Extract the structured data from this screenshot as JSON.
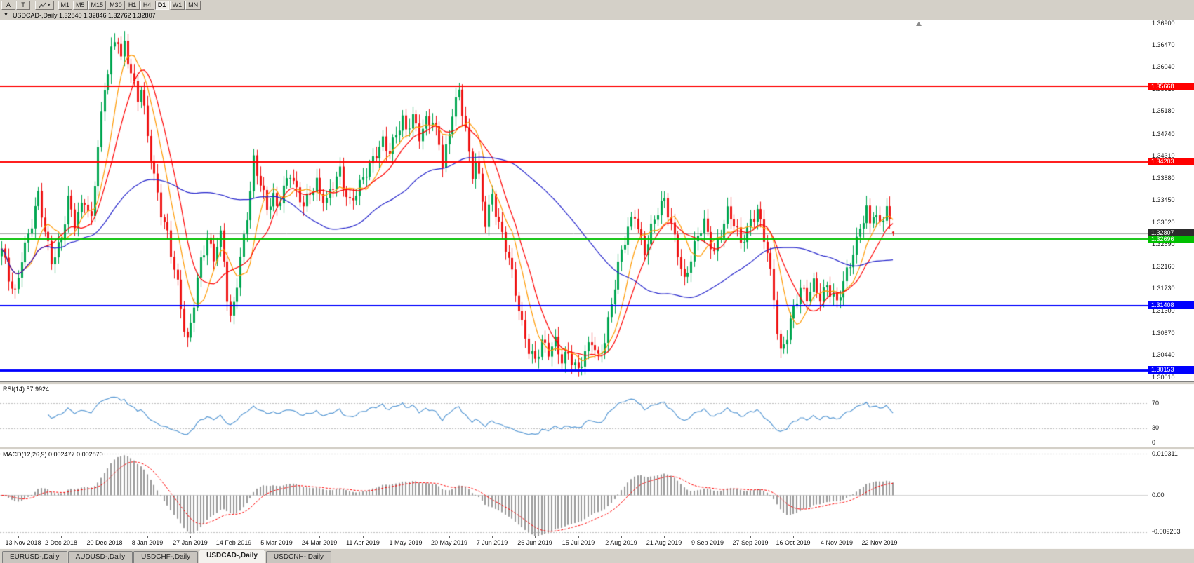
{
  "toolbar": {
    "left_buttons": [
      "A",
      "T"
    ],
    "timeframes": [
      "M1",
      "M5",
      "M15",
      "M30",
      "H1",
      "H4",
      "D1",
      "W1",
      "MN"
    ],
    "active_timeframe": "D1"
  },
  "title_bar": {
    "text": "USDCAD-,Daily  1.32840 1.32846 1.32762 1.32807"
  },
  "quote": {
    "open": 1.3284,
    "high": 1.32846,
    "low": 1.32762,
    "close": 1.32807
  },
  "price_scale": {
    "ticks": [
      "1.36900",
      "1.36470",
      "1.36040",
      "1.35610",
      "1.35180",
      "1.34740",
      "1.34310",
      "1.33880",
      "1.33450",
      "1.33020",
      "1.32590",
      "1.32160",
      "1.31730",
      "1.31300",
      "1.30870",
      "1.30440",
      "1.30010"
    ]
  },
  "current_price_tag": {
    "label": "1.32807",
    "bg": "#2b2b2b"
  },
  "levels": [
    {
      "label": "1.35668",
      "price": 1.35668,
      "color": "#ff0000",
      "line_width": 2
    },
    {
      "label": "1.34203",
      "price": 1.34203,
      "color": "#ff0000",
      "line_width": 2
    },
    {
      "label": "1.32696",
      "price": 1.32696,
      "color": "#00c000",
      "line_width": 2
    },
    {
      "label": "1.31408",
      "price": 1.31408,
      "color": "#0000ff",
      "line_width": 2
    },
    {
      "label": "1.30153",
      "price": 1.30153,
      "color": "#0000ff",
      "line_width": 3
    }
  ],
  "chart_data": {
    "type": "candlestick",
    "symbol": "USDCAD",
    "timeframe": "Daily",
    "bars_total": 270,
    "price_range": [
      1.2993,
      1.3695
    ],
    "colors": {
      "bull": "#00a651",
      "bear": "#ef1515",
      "bid_line": "#a6a6a6",
      "macd_hist": "#9a9a9a",
      "macd_signal": "#ff0000"
    },
    "moving_averages": [
      {
        "period": 8,
        "color": "#ff9900"
      },
      {
        "period": 13,
        "color": "#ff0000"
      },
      {
        "period": 55,
        "color": "#2424cc"
      }
    ],
    "close_waypoints": [
      [
        0,
        1.3245
      ],
      [
        2,
        1.319
      ],
      [
        4,
        1.3165
      ],
      [
        6,
        1.324
      ],
      [
        9,
        1.33
      ],
      [
        11,
        1.335
      ],
      [
        13,
        1.328
      ],
      [
        15,
        1.323
      ],
      [
        18,
        1.3275
      ],
      [
        20,
        1.3345
      ],
      [
        22,
        1.3295
      ],
      [
        25,
        1.3345
      ],
      [
        27,
        1.331
      ],
      [
        29,
        1.346
      ],
      [
        31,
        1.356
      ],
      [
        33,
        1.363
      ],
      [
        35,
        1.3655
      ],
      [
        36,
        1.362
      ],
      [
        37,
        1.365
      ],
      [
        39,
        1.36
      ],
      [
        41,
        1.3545
      ],
      [
        42,
        1.3565
      ],
      [
        44,
        1.3465
      ],
      [
        46,
        1.3385
      ],
      [
        48,
        1.3325
      ],
      [
        50,
        1.3285
      ],
      [
        51,
        1.325
      ],
      [
        53,
        1.318
      ],
      [
        55,
        1.309
      ],
      [
        56,
        1.3062
      ],
      [
        58,
        1.3145
      ],
      [
        60,
        1.3235
      ],
      [
        62,
        1.3275
      ],
      [
        64,
        1.3235
      ],
      [
        66,
        1.327
      ],
      [
        67,
        1.3225
      ],
      [
        68,
        1.315
      ],
      [
        69,
        1.311
      ],
      [
        71,
        1.319
      ],
      [
        73,
        1.328
      ],
      [
        75,
        1.336
      ],
      [
        76,
        1.342
      ],
      [
        78,
        1.337
      ],
      [
        80,
        1.333
      ],
      [
        82,
        1.3355
      ],
      [
        83,
        1.334
      ],
      [
        85,
        1.337
      ],
      [
        87,
        1.3395
      ],
      [
        89,
        1.3355
      ],
      [
        91,
        1.3335
      ],
      [
        93,
        1.3365
      ],
      [
        95,
        1.3385
      ],
      [
        96,
        1.336
      ],
      [
        98,
        1.334
      ],
      [
        100,
        1.337
      ],
      [
        102,
        1.34
      ],
      [
        103,
        1.3375
      ],
      [
        105,
        1.3345
      ],
      [
        107,
        1.3365
      ],
      [
        109,
        1.3385
      ],
      [
        111,
        1.3405
      ],
      [
        113,
        1.3435
      ],
      [
        115,
        1.3465
      ],
      [
        117,
        1.3445
      ],
      [
        119,
        1.3475
      ],
      [
        121,
        1.3495
      ],
      [
        122,
        1.3475
      ],
      [
        124,
        1.3505
      ],
      [
        126,
        1.3475
      ],
      [
        128,
        1.3505
      ],
      [
        130,
        1.35
      ],
      [
        132,
        1.345
      ],
      [
        133,
        1.341
      ],
      [
        135,
        1.347
      ],
      [
        136,
        1.352
      ],
      [
        137,
        1.3545
      ],
      [
        138,
        1.356
      ],
      [
        140,
        1.349
      ],
      [
        141,
        1.343
      ],
      [
        142,
        1.339
      ],
      [
        143,
        1.342
      ],
      [
        145,
        1.334
      ],
      [
        146,
        1.33
      ],
      [
        147,
        1.333
      ],
      [
        148,
        1.336
      ],
      [
        149,
        1.333
      ],
      [
        151,
        1.328
      ],
      [
        153,
        1.323
      ],
      [
        155,
        1.316
      ],
      [
        157,
        1.31
      ],
      [
        159,
        1.306
      ],
      [
        161,
        1.304
      ],
      [
        163,
        1.307
      ],
      [
        165,
        1.3045
      ],
      [
        167,
        1.3065
      ],
      [
        169,
        1.3035
      ],
      [
        171,
        1.3055
      ],
      [
        173,
        1.3025
      ],
      [
        174,
        1.3016
      ],
      [
        176,
        1.3042
      ],
      [
        178,
        1.3068
      ],
      [
        180,
        1.3038
      ],
      [
        182,
        1.308
      ],
      [
        184,
        1.3148
      ],
      [
        186,
        1.3215
      ],
      [
        187,
        1.324
      ],
      [
        189,
        1.3285
      ],
      [
        191,
        1.332
      ],
      [
        192,
        1.3295
      ],
      [
        194,
        1.325
      ],
      [
        196,
        1.329
      ],
      [
        198,
        1.332
      ],
      [
        200,
        1.334
      ],
      [
        202,
        1.33
      ],
      [
        204,
        1.325
      ],
      [
        206,
        1.319
      ],
      [
        208,
        1.323
      ],
      [
        210,
        1.327
      ],
      [
        212,
        1.33
      ],
      [
        213,
        1.328
      ],
      [
        215,
        1.325
      ],
      [
        217,
        1.3285
      ],
      [
        219,
        1.332
      ],
      [
        221,
        1.3295
      ],
      [
        223,
        1.326
      ],
      [
        225,
        1.329
      ],
      [
        226,
        1.331
      ],
      [
        228,
        1.333
      ],
      [
        229,
        1.33
      ],
      [
        231,
        1.324
      ],
      [
        233,
        1.315
      ],
      [
        234,
        1.309
      ],
      [
        235,
        1.3048
      ],
      [
        237,
        1.309
      ],
      [
        239,
        1.314
      ],
      [
        241,
        1.317
      ],
      [
        243,
        1.315
      ],
      [
        245,
        1.318
      ],
      [
        247,
        1.316
      ],
      [
        249,
        1.3185
      ],
      [
        251,
        1.316
      ],
      [
        252,
        1.3142
      ],
      [
        254,
        1.318
      ],
      [
        256,
        1.322
      ],
      [
        258,
        1.3268
      ],
      [
        259,
        1.33
      ],
      [
        261,
        1.333
      ],
      [
        262,
        1.33
      ],
      [
        263,
        1.332
      ],
      [
        265,
        1.329
      ],
      [
        266,
        1.331
      ],
      [
        267,
        1.333
      ],
      [
        268,
        1.33
      ],
      [
        269,
        1.3281
      ]
    ],
    "date_labels": {
      "bars": [
        5,
        18,
        31,
        44,
        57,
        70,
        83,
        96,
        109,
        122,
        135,
        148,
        161,
        174,
        187,
        200,
        213,
        226,
        239,
        252,
        265
      ],
      "texts": [
        "13 Nov 2018",
        "2 Dec 2018",
        "20 Dec 2018",
        "8 Jan 2019",
        "27 Jan 2019",
        "14 Feb 2019",
        "5 Mar 2019",
        "24 Mar 2019",
        "11 Apr 2019",
        "1 May 2019",
        "20 May 2019",
        "7 Jun 2019",
        "26 Jun 2019",
        "15 Jul 2019",
        "2 Aug 2019",
        "21 Aug 2019",
        "9 Sep 2019",
        "27 Sep 2019",
        "16 Oct 2019",
        "4 Nov 2019",
        "22 Nov 2019"
      ]
    }
  },
  "rsi": {
    "label": "RSI(14) 57.9924",
    "color": "#5b9bd5",
    "range": [
      0,
      100
    ],
    "guide_levels": [
      70,
      30
    ],
    "scale_labels": [
      {
        "text": "70",
        "value": 70
      },
      {
        "text": "30",
        "value": 30
      },
      {
        "text": "0",
        "value": 0
      }
    ]
  },
  "macd": {
    "label": "MACD(12,26,9) 0.002477 0.002870",
    "range": [
      -0.01,
      0.0112
    ],
    "guide_levels": [
      0.010311,
      -0.009203
    ],
    "scale_labels": [
      {
        "text": "0.010311",
        "value": 0.010311
      },
      {
        "text": "0.00",
        "value": 0
      },
      {
        "text": "-0.009203",
        "value": -0.009203
      }
    ]
  },
  "tabs": [
    {
      "label": "EURUSD-,Daily",
      "active": false
    },
    {
      "label": "AUDUSD-,Daily",
      "active": false
    },
    {
      "label": "USDCHF-,Daily",
      "active": false
    },
    {
      "label": "USDCAD-,Daily",
      "active": true
    },
    {
      "label": "USDCNH-,Daily",
      "active": false
    }
  ]
}
